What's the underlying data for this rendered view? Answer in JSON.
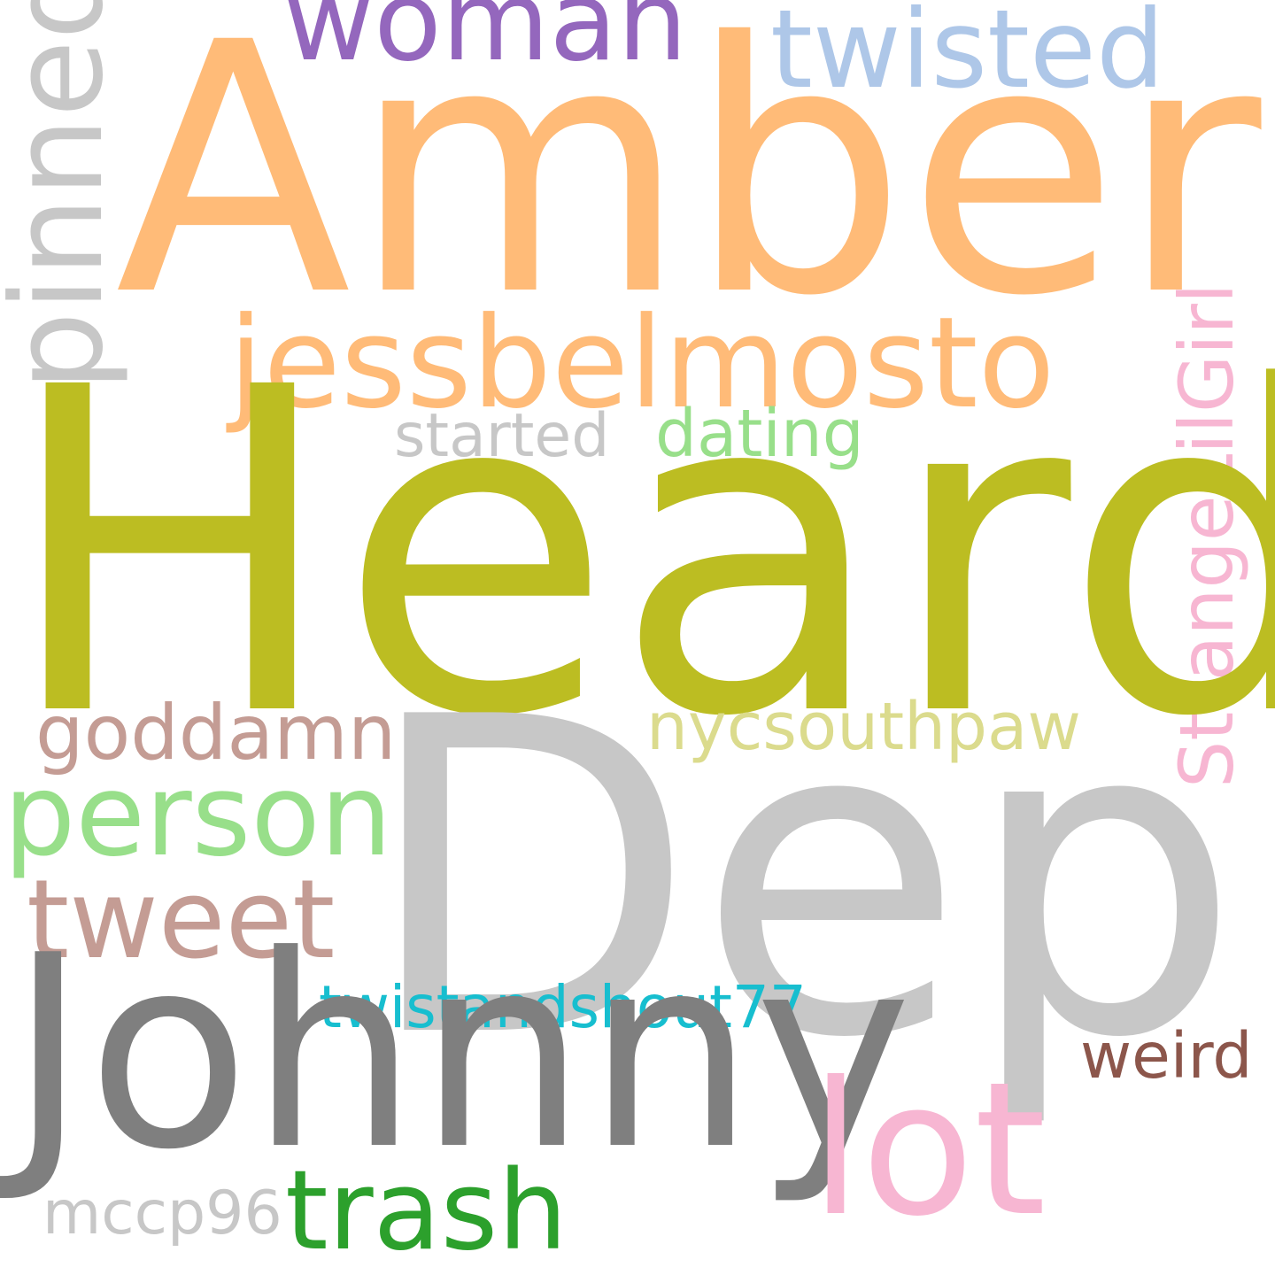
{
  "words": {
    "amber": {
      "text": "Amber",
      "color": "#ffbb78"
    },
    "heard": {
      "text": "Heard",
      "color": "#bcbd22"
    },
    "depp": {
      "text": "Depp",
      "color": "#c7c7c7"
    },
    "johnny": {
      "text": "Johnny",
      "color": "#7f7f7f"
    },
    "jessbelmosto": {
      "text": "jessbelmosto",
      "color": "#ffbb78"
    },
    "twisted": {
      "text": "twisted",
      "color": "#aec7e8"
    },
    "woman": {
      "text": "woman",
      "color": "#9467bd"
    },
    "pinned": {
      "text": "pinned",
      "color": "#c7c7c7"
    },
    "strangelilgirl": {
      "text": "StrangeLilGirl",
      "color": "#f7b6d2"
    },
    "started": {
      "text": "started",
      "color": "#c7c7c7"
    },
    "dating": {
      "text": "dating",
      "color": "#98df8a"
    },
    "goddamn": {
      "text": "goddamn",
      "color": "#c49c94"
    },
    "nycsouthpaw": {
      "text": "nycsouthpaw",
      "color": "#dbdb8d"
    },
    "person": {
      "text": "person",
      "color": "#98df8a"
    },
    "tweet": {
      "text": "tweet",
      "color": "#c49c94"
    },
    "twistandshout77": {
      "text": "twistandshout77",
      "color": "#17becf"
    },
    "weird": {
      "text": "weird",
      "color": "#8c564b"
    },
    "lot": {
      "text": "lot",
      "color": "#f7b6d2"
    },
    "trash": {
      "text": "trash",
      "color": "#2ca02c"
    },
    "mccp96": {
      "text": "mccp96",
      "color": "#c7c7c7"
    }
  }
}
